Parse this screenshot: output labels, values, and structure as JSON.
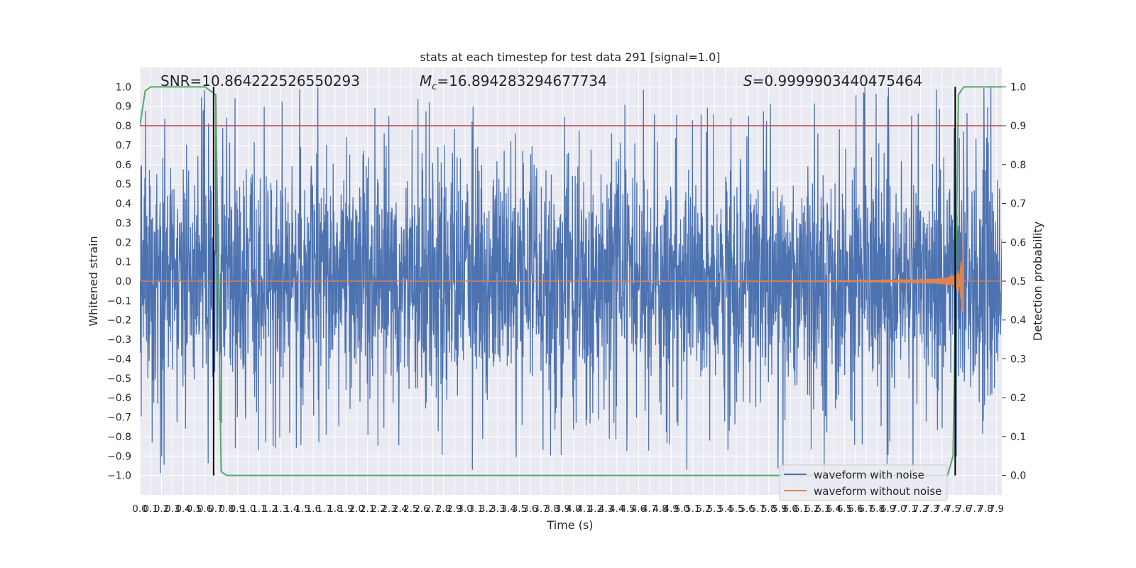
{
  "chart_data": {
    "type": "line",
    "title": "stats at each timestep for test data 291 [signal=1.0]",
    "xlabel": "Time (s)",
    "ylabel": "Whitened strain",
    "ylabel_right": "Detection probability",
    "xlim": [
      0.0,
      7.95
    ],
    "ylim": [
      -1.1,
      1.1
    ],
    "ylim_right": [
      -0.05,
      1.05
    ],
    "x_ticks": [
      "0.0",
      "0.1",
      "0.2",
      "0.3",
      "0.4",
      "0.5",
      "0.6",
      "0.7",
      "0.8",
      "0.9",
      "1.0",
      "1.1",
      "1.2",
      "1.3",
      "1.4",
      "1.5",
      "1.6",
      "1.7",
      "1.8",
      "1.9",
      "2.0",
      "2.1",
      "2.2",
      "2.3",
      "2.4",
      "2.5",
      "2.6",
      "2.7",
      "2.8",
      "2.9",
      "3.0",
      "3.1",
      "3.2",
      "3.3",
      "3.4",
      "3.5",
      "3.6",
      "3.7",
      "3.8",
      "3.9",
      "4.0",
      "4.1",
      "4.2",
      "4.3",
      "4.4",
      "4.5",
      "4.6",
      "4.7",
      "4.8",
      "4.9",
      "5.0",
      "5.1",
      "5.2",
      "5.3",
      "5.4",
      "5.5",
      "5.6",
      "5.7",
      "5.8",
      "5.9",
      "6.0",
      "6.1",
      "6.2",
      "6.3",
      "6.4",
      "6.5",
      "6.6",
      "6.7",
      "6.8",
      "6.9",
      "7.0",
      "7.1",
      "7.2",
      "7.3",
      "7.4",
      "7.5",
      "7.6",
      "7.7",
      "7.8",
      "7.9"
    ],
    "y_ticks": [
      "1.0",
      "0.9",
      "0.8",
      "0.7",
      "0.6",
      "0.5",
      "0.4",
      "0.3",
      "0.2",
      "0.1",
      "0.0",
      "−0.1",
      "−0.2",
      "−0.3",
      "−0.4",
      "−0.5",
      "−0.6",
      "−0.7",
      "−0.8",
      "−0.9",
      "−1.0"
    ],
    "y_ticks_right": [
      "1.0",
      "0.9",
      "0.8",
      "0.7",
      "0.6",
      "0.5",
      "0.4",
      "0.3",
      "0.2",
      "0.1",
      "0.0"
    ],
    "annotations": [
      {
        "text": "SNR=10.864222526550293"
      },
      {
        "prefix": "M",
        "sub": "c",
        "text": "=16.894283294677734"
      },
      {
        "prefix": "S",
        "text": "=0.9999903440475464"
      }
    ],
    "series": [
      {
        "name": "waveform with noise",
        "color": "#4c72b0",
        "axis": "left",
        "description": "whitened noisy strain, amplitude approx 0.4-0.6 with spikes to +/-1.0"
      },
      {
        "name": "waveform without noise",
        "color": "#dd8452",
        "axis": "left",
        "description": "chirp signal, amplitude near 0 growing to approx 0.6 near 7.55 s, ending by 7.6 s",
        "chirp_end": 7.6,
        "peak_amp": 0.62
      },
      {
        "color": "#55a868",
        "axis": "right",
        "x": [
          0.0,
          0.05,
          0.1,
          0.6,
          0.7,
          0.75,
          0.8,
          7.45,
          7.5,
          7.55,
          7.6,
          7.95
        ],
        "y": [
          0.9,
          0.99,
          1.0,
          1.0,
          0.98,
          0.01,
          0.0,
          0.0,
          0.05,
          0.98,
          1.0,
          1.0
        ]
      },
      {
        "color": "#c44e52",
        "axis": "left",
        "type": "hline",
        "y": 0.8
      },
      {
        "color": "#000000",
        "axis": "left",
        "type": "vline",
        "x": 0.68,
        "y_range": [
          -1.0,
          1.0
        ]
      },
      {
        "color": "#000000",
        "axis": "left",
        "type": "vline",
        "x": 7.52,
        "y_range": [
          -1.0,
          1.0
        ]
      }
    ],
    "legend": {
      "position": "lower right",
      "entries": [
        "waveform with noise",
        "waveform without noise"
      ]
    },
    "grid": true,
    "background": "#eaeaf2"
  }
}
